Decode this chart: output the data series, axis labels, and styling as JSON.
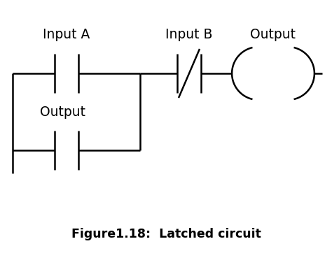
{
  "caption": "Figure1.18:  Latched circuit",
  "bg_color": "#ffffff",
  "line_color": "#000000",
  "label_inputA": "Input A",
  "label_inputB": "Input B",
  "label_output_top": "Output",
  "label_output_mid": "Output",
  "figsize": [
    4.74,
    3.62
  ],
  "dpi": 100,
  "lw": 1.8
}
